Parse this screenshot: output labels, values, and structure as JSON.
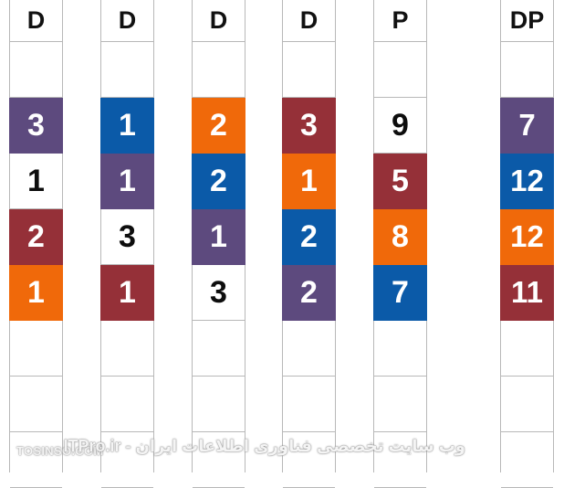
{
  "palette": {
    "purple": "#5d4a7e",
    "blue": "#0b5aa8",
    "orange": "#f0690a",
    "maroon": "#953038",
    "white": "#ffffff",
    "grid_line": "#b8b8b8"
  },
  "columns": [
    {
      "header": "D",
      "cells": [
        {
          "value": "",
          "color": "white"
        },
        {
          "value": "3",
          "color": "purple"
        },
        {
          "value": "1",
          "color": "white"
        },
        {
          "value": "2",
          "color": "maroon"
        },
        {
          "value": "1",
          "color": "orange"
        },
        {
          "value": "",
          "color": "white"
        },
        {
          "value": "",
          "color": "white"
        },
        {
          "value": "",
          "color": "white"
        }
      ]
    },
    {
      "header": "D",
      "cells": [
        {
          "value": "",
          "color": "white"
        },
        {
          "value": "1",
          "color": "blue"
        },
        {
          "value": "1",
          "color": "purple"
        },
        {
          "value": "3",
          "color": "white"
        },
        {
          "value": "1",
          "color": "maroon"
        },
        {
          "value": "",
          "color": "white"
        },
        {
          "value": "",
          "color": "white"
        },
        {
          "value": "",
          "color": "white"
        }
      ]
    },
    {
      "header": "D",
      "cells": [
        {
          "value": "",
          "color": "white"
        },
        {
          "value": "2",
          "color": "orange"
        },
        {
          "value": "2",
          "color": "blue"
        },
        {
          "value": "1",
          "color": "purple"
        },
        {
          "value": "3",
          "color": "white"
        },
        {
          "value": "",
          "color": "white"
        },
        {
          "value": "",
          "color": "white"
        },
        {
          "value": "",
          "color": "white"
        }
      ]
    },
    {
      "header": "D",
      "cells": [
        {
          "value": "",
          "color": "white"
        },
        {
          "value": "3",
          "color": "maroon"
        },
        {
          "value": "1",
          "color": "orange"
        },
        {
          "value": "2",
          "color": "blue"
        },
        {
          "value": "2",
          "color": "purple"
        },
        {
          "value": "",
          "color": "white"
        },
        {
          "value": "",
          "color": "white"
        },
        {
          "value": "",
          "color": "white"
        }
      ]
    },
    {
      "header": "P",
      "cells": [
        {
          "value": "",
          "color": "white"
        },
        {
          "value": "9",
          "color": "white"
        },
        {
          "value": "5",
          "color": "maroon"
        },
        {
          "value": "8",
          "color": "orange"
        },
        {
          "value": "7",
          "color": "blue"
        },
        {
          "value": "",
          "color": "white"
        },
        {
          "value": "",
          "color": "white"
        },
        {
          "value": "",
          "color": "white"
        }
      ]
    },
    {
      "header": "DP",
      "cells": [
        {
          "value": "",
          "color": "white"
        },
        {
          "value": "7",
          "color": "purple"
        },
        {
          "value": "12",
          "color": "blue"
        },
        {
          "value": "12",
          "color": "orange"
        },
        {
          "value": "11",
          "color": "maroon"
        },
        {
          "value": "",
          "color": "white"
        },
        {
          "value": "",
          "color": "white"
        },
        {
          "value": "",
          "color": "white"
        }
      ]
    }
  ],
  "watermark": {
    "left": "TOSINSO.COM",
    "right": "وب سایت تخصصی فناوری اطلاعات ایران - ITPro.ir"
  }
}
